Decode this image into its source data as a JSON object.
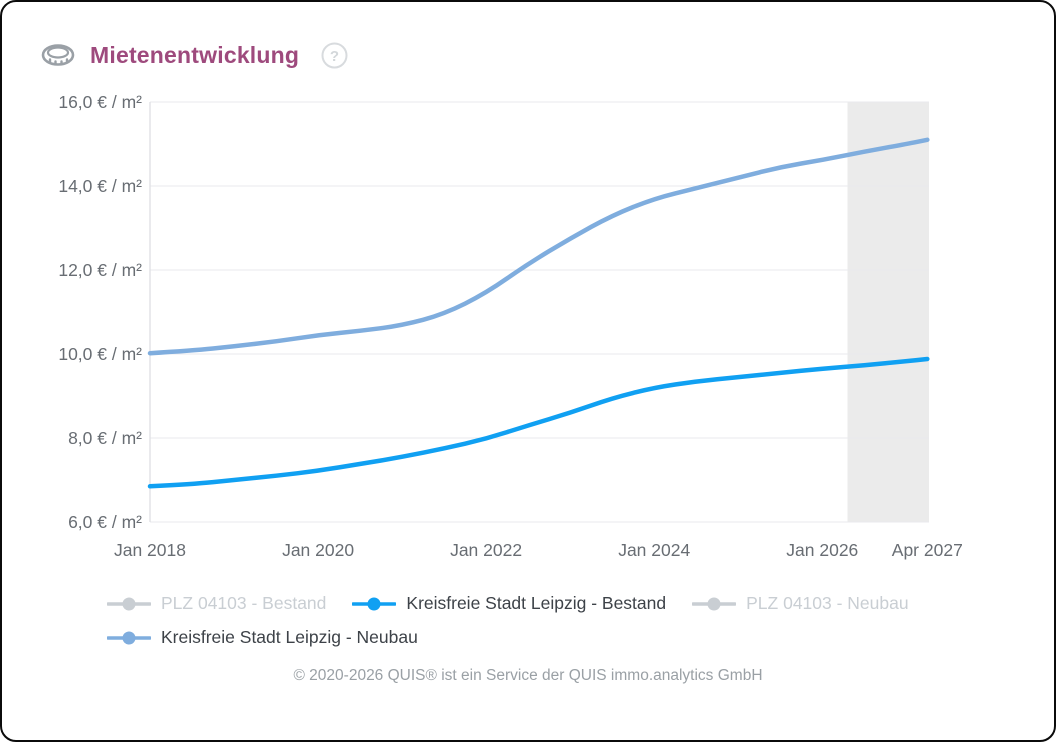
{
  "header": {
    "title": "Mietenentwicklung",
    "title_color": "#9e4a7d",
    "icon": "coins-icon",
    "help_icon": "question-circle-icon"
  },
  "chart_data": {
    "type": "line",
    "title": "Mietenentwicklung",
    "ylabel": "€ / m²",
    "ylim": [
      6,
      16
    ],
    "xlim": [
      2018,
      2027.27
    ],
    "grid": true,
    "legend_position": "bottom",
    "grid_color": "#e9eaed",
    "axis_color": "#e0e2e5",
    "tick_color": "#686d73",
    "forecast_band": {
      "from": 2026.3,
      "to": 2027.27,
      "color": "#ebebeb"
    },
    "y_ticks": [
      {
        "value": 16,
        "label": "16,0 € / m²"
      },
      {
        "value": 14,
        "label": "14,0 € / m²"
      },
      {
        "value": 12,
        "label": "12,0 € / m²"
      },
      {
        "value": 10,
        "label": "10,0 € / m²"
      },
      {
        "value": 8,
        "label": "8,0 € / m²"
      },
      {
        "value": 6,
        "label": "6,0 € / m²"
      }
    ],
    "x_ticks": [
      {
        "value": 2018,
        "label": "Jan 2018"
      },
      {
        "value": 2020,
        "label": "Jan 2020"
      },
      {
        "value": 2022,
        "label": "Jan 2022"
      },
      {
        "value": 2024,
        "label": "Jan 2024"
      },
      {
        "value": 2026,
        "label": "Jan 2026"
      },
      {
        "value": 2027.25,
        "label": "Apr 2027"
      }
    ],
    "x": [
      2018,
      2018.5,
      2019,
      2019.5,
      2020,
      2020.5,
      2021,
      2021.5,
      2022,
      2022.5,
      2023,
      2023.5,
      2024,
      2024.5,
      2025,
      2025.5,
      2026,
      2026.5,
      2027,
      2027.25
    ],
    "series": [
      {
        "name": "PLZ 04103 - Bestand",
        "visible": false,
        "color": "#c9ced3"
      },
      {
        "name": "Kreisfreie Stadt Leipzig - Bestand",
        "visible": true,
        "color": "#10a0f2",
        "values": [
          6.85,
          6.9,
          7.0,
          7.1,
          7.22,
          7.38,
          7.55,
          7.75,
          7.98,
          8.3,
          8.6,
          8.95,
          9.2,
          9.35,
          9.45,
          9.55,
          9.65,
          9.73,
          9.83,
          9.88
        ]
      },
      {
        "name": "PLZ 04103 - Neubau",
        "visible": false,
        "color": "#c9ced3"
      },
      {
        "name": "Kreisfreie Stadt Leipzig - Neubau",
        "visible": true,
        "color": "#7fadde",
        "values": [
          10.02,
          10.08,
          10.18,
          10.3,
          10.45,
          10.55,
          10.68,
          10.95,
          11.45,
          12.15,
          12.75,
          13.3,
          13.7,
          13.95,
          14.2,
          14.45,
          14.62,
          14.82,
          15.0,
          15.1
        ]
      }
    ]
  },
  "footer": {
    "text": "© 2020-2026 QUIS® ist ein Service der QUIS immo.analytics GmbH"
  }
}
